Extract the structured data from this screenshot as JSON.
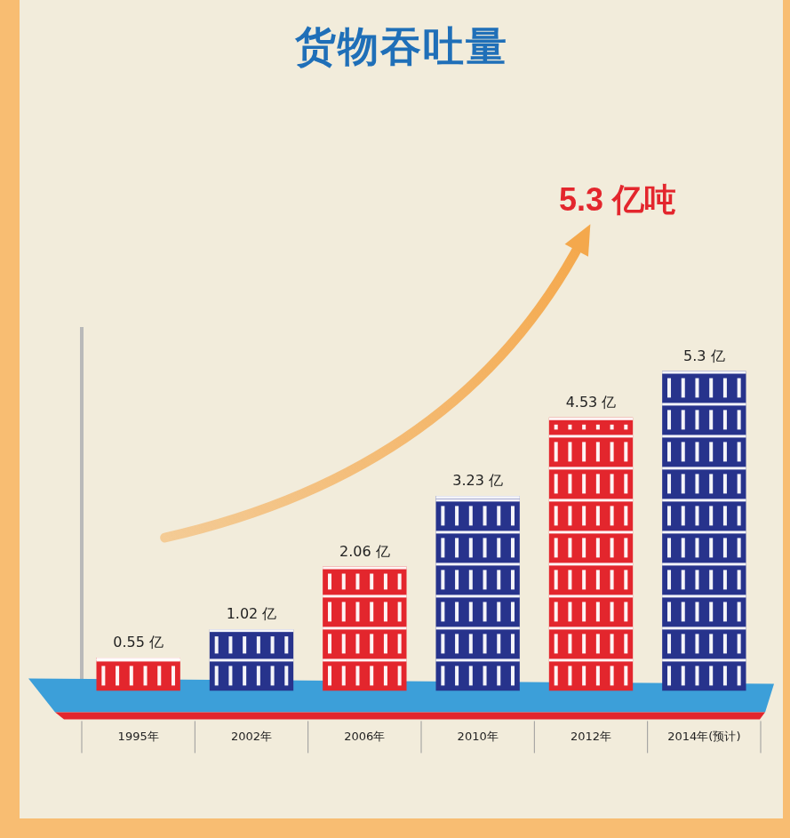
{
  "chart_data": {
    "type": "bar",
    "title": "货物吞吐量",
    "annotation": "5.3 亿吨",
    "categories": [
      "1995年",
      "2002年",
      "2006年",
      "2010年",
      "2012年",
      "2014年(预计)"
    ],
    "values": [
      0.55,
      1.02,
      2.06,
      3.23,
      4.53,
      5.3
    ],
    "value_labels": [
      "0.55 亿",
      "1.02 亿",
      "2.06 亿",
      "3.23 亿",
      "4.53 亿",
      "5.3 亿"
    ],
    "colors": [
      "#e3262d",
      "#27338c",
      "#e3262d",
      "#27338c",
      "#e3262d",
      "#27338c"
    ],
    "ylim": [
      0,
      6
    ],
    "tick_labels": "x",
    "grid": false,
    "data_labels": true
  }
}
